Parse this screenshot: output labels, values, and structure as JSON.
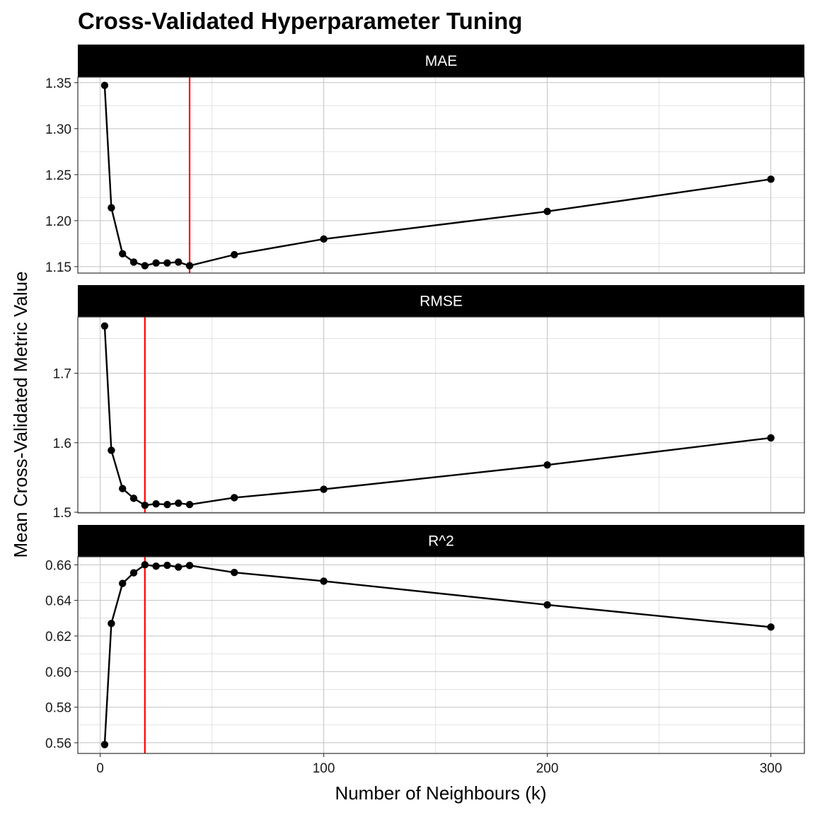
{
  "chart_data": {
    "type": "line",
    "title": "Cross-Validated Hyperparameter Tuning",
    "xlabel": "Number of Neighbours (k)",
    "ylabel": "Mean Cross-Validated Metric Value",
    "x": [
      2,
      5,
      10,
      15,
      20,
      25,
      30,
      35,
      40,
      60,
      100,
      200,
      300
    ],
    "xlim": [
      -10,
      315
    ],
    "xticks": [
      0,
      100,
      200,
      300
    ],
    "grid": true,
    "line_color": "#000000",
    "marker_color": "#000000",
    "vline_color": "#ff0000",
    "strip_color": "#000000",
    "strip_text_color": "#ffffff",
    "facets": [
      {
        "name": "MAE",
        "values": [
          1.347,
          1.214,
          1.164,
          1.155,
          1.151,
          1.154,
          1.154,
          1.155,
          1.151,
          1.163,
          1.18,
          1.21,
          1.245
        ],
        "ylim": [
          1.143,
          1.356
        ],
        "yticks": [
          1.15,
          1.2,
          1.25,
          1.3,
          1.35
        ],
        "ytick_labels": [
          "1.15",
          "1.20",
          "1.25",
          "1.30",
          "1.35"
        ],
        "best_k": 40
      },
      {
        "name": "RMSE",
        "values": [
          1.768,
          1.589,
          1.534,
          1.52,
          1.51,
          1.512,
          1.511,
          1.513,
          1.511,
          1.521,
          1.533,
          1.568,
          1.607
        ],
        "ylim": [
          1.499,
          1.781
        ],
        "yticks": [
          1.5,
          1.6,
          1.7
        ],
        "ytick_labels": [
          "1.5",
          "1.6",
          "1.7"
        ],
        "best_k": 20
      },
      {
        "name": "R^2",
        "values": [
          0.559,
          0.627,
          0.6495,
          0.6555,
          0.66,
          0.6592,
          0.6597,
          0.6587,
          0.6596,
          0.6557,
          0.6508,
          0.6375,
          0.625
        ],
        "ylim": [
          0.554,
          0.6645
        ],
        "yticks": [
          0.56,
          0.58,
          0.6,
          0.62,
          0.64,
          0.66
        ],
        "ytick_labels": [
          "0.56",
          "0.58",
          "0.60",
          "0.62",
          "0.64",
          "0.66"
        ],
        "best_k": 20
      }
    ]
  }
}
